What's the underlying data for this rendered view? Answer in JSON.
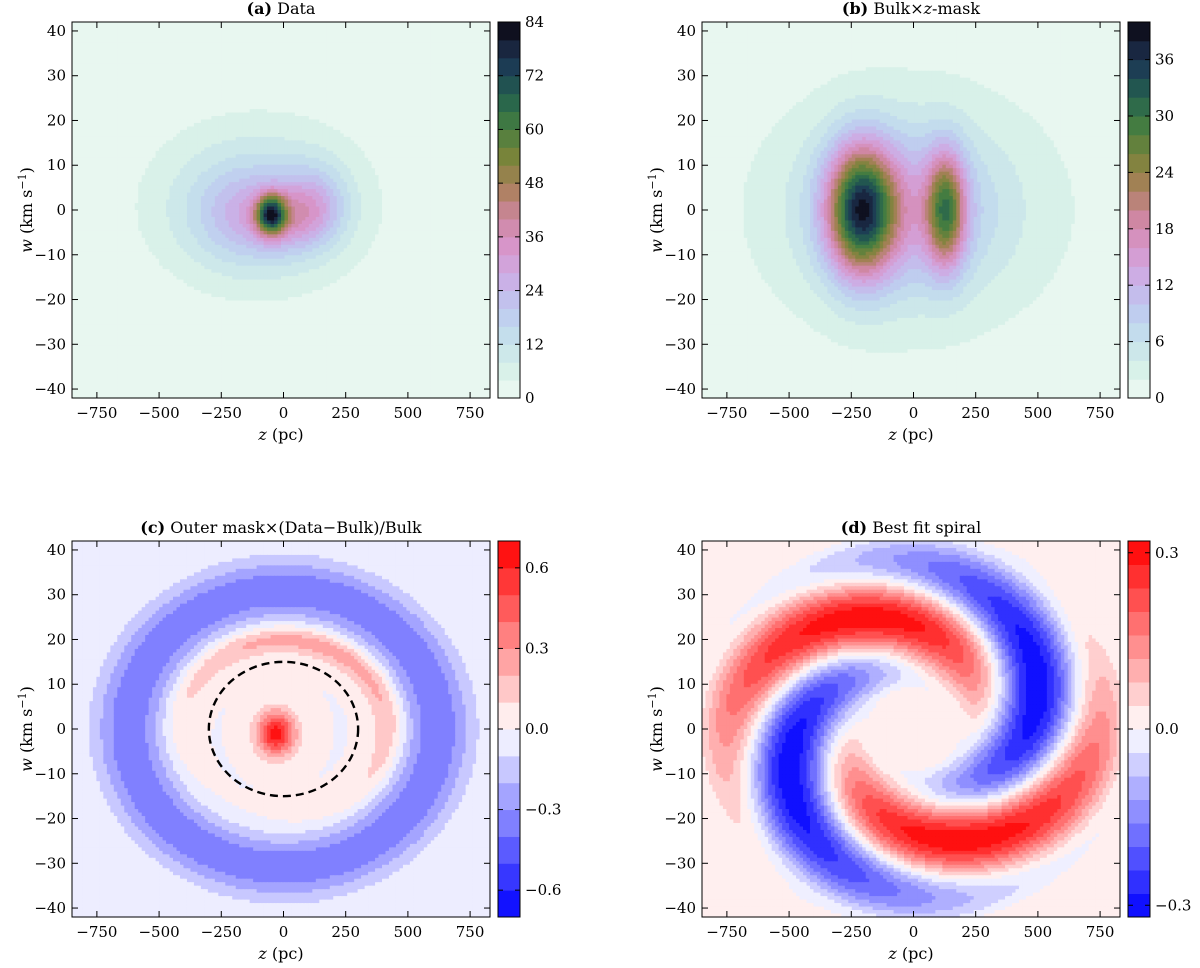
{
  "chart_data": [
    {
      "id": "a",
      "type": "heatmap",
      "title_tag": "(a)",
      "title_text": " Data",
      "xlabel_var": "z",
      "xlabel_unit": " (pc)",
      "ylabel_var": "w",
      "ylabel_unit": " (km s",
      "ylabel_exp": "−1",
      "ylabel_close": ")",
      "xlim": [
        -850,
        830
      ],
      "ylim": [
        -42,
        42
      ],
      "xticks": [
        -750,
        -500,
        -250,
        0,
        250,
        500,
        750
      ],
      "xticklabels": [
        "−750",
        "−500",
        "−250",
        "0",
        "250",
        "500",
        "750"
      ],
      "yticks": [
        -40,
        -30,
        -20,
        -10,
        0,
        10,
        20,
        30,
        40
      ],
      "yticklabels": [
        "−40",
        "−30",
        "−20",
        "−10",
        "0",
        "10",
        "20",
        "30",
        "40"
      ],
      "colorbar": {
        "min": 0,
        "max": 84,
        "levels": 21,
        "ticks": [
          0,
          12,
          24,
          36,
          48,
          60,
          72,
          84
        ],
        "ticklabels": [
          "0",
          "12",
          "24",
          "36",
          "48",
          "60",
          "72",
          "84"
        ],
        "cmap": "cubehelix_r"
      },
      "features": [
        {
          "kind": "blob",
          "z": -50,
          "w": -1,
          "sz": 40,
          "sw": 3,
          "amp": 50
        },
        {
          "kind": "blob",
          "z": 40,
          "w": -2,
          "sz": 110,
          "sw": 5,
          "amp": 14
        },
        {
          "kind": "blob",
          "z": -150,
          "w": -1,
          "sz": 140,
          "sw": 7,
          "amp": 12
        },
        {
          "kind": "blob",
          "z": 130,
          "w": 2,
          "sz": 90,
          "sw": 6,
          "amp": 12
        },
        {
          "kind": "blob",
          "z": -100,
          "w": 1,
          "sz": 300,
          "sw": 13,
          "amp": 15
        }
      ]
    },
    {
      "id": "b",
      "type": "heatmap",
      "title_tag": "(b)",
      "title_text": " Bulk×",
      "title_var": "z",
      "title_end": "-mask",
      "xlabel_var": "z",
      "xlabel_unit": " (pc)",
      "ylabel_var": "w",
      "ylabel_unit": " (km s",
      "ylabel_exp": "−1",
      "ylabel_close": ")",
      "xlim": [
        -850,
        830
      ],
      "ylim": [
        -42,
        42
      ],
      "xticks": [
        -750,
        -500,
        -250,
        0,
        250,
        500,
        750
      ],
      "xticklabels": [
        "−750",
        "−500",
        "−250",
        "0",
        "250",
        "500",
        "750"
      ],
      "yticks": [
        -40,
        -30,
        -20,
        -10,
        0,
        10,
        20,
        30,
        40
      ],
      "yticklabels": [
        "−40",
        "−30",
        "−20",
        "−10",
        "0",
        "10",
        "20",
        "30",
        "40"
      ],
      "colorbar": {
        "min": 0,
        "max": 40,
        "levels": 20,
        "ticks": [
          0,
          6,
          12,
          18,
          24,
          30,
          36
        ],
        "ticklabels": [
          "0",
          "6",
          "12",
          "18",
          "24",
          "30",
          "36"
        ],
        "cmap": "cubehelix_r"
      },
      "features": [
        {
          "kind": "blob",
          "z": -210,
          "w": 0,
          "sz": 95,
          "sw": 10,
          "amp": 28
        },
        {
          "kind": "blob",
          "z": 130,
          "w": 0,
          "sz": 55,
          "sw": 9,
          "amp": 20
        },
        {
          "kind": "blob",
          "z": -40,
          "w": 0,
          "sz": 260,
          "sw": 13,
          "amp": 10
        },
        {
          "kind": "blob",
          "z": 0,
          "w": 0,
          "sz": 600,
          "sw": 26,
          "amp": 3
        }
      ]
    },
    {
      "id": "c",
      "type": "heatmap",
      "title_tag": "(c)",
      "title_text": " Outer mask×(Data−Bulk)/Bulk",
      "xlabel_var": "z",
      "xlabel_unit": " (pc)",
      "ylabel_var": "w",
      "ylabel_unit": " (km s",
      "ylabel_exp": "−1",
      "ylabel_close": ")",
      "xlim": [
        -850,
        830
      ],
      "ylim": [
        -42,
        42
      ],
      "xticks": [
        -750,
        -500,
        -250,
        0,
        250,
        500,
        750
      ],
      "xticklabels": [
        "−750",
        "−500",
        "−250",
        "0",
        "250",
        "500",
        "750"
      ],
      "yticks": [
        -40,
        -30,
        -20,
        -10,
        0,
        10,
        20,
        30,
        40
      ],
      "yticklabels": [
        "−40",
        "−30",
        "−20",
        "−10",
        "0",
        "10",
        "20",
        "30",
        "40"
      ],
      "colorbar": {
        "min": -0.7,
        "max": 0.7,
        "levels": 14,
        "ticks": [
          -0.6,
          -0.3,
          0.0,
          0.3,
          0.6
        ],
        "ticklabels": [
          "−0.6",
          "−0.3",
          "0.0",
          "0.3",
          "0.6"
        ],
        "cmap": "bwr"
      },
      "dashed_ellipse": {
        "z0": 0,
        "w0": 0,
        "rz": 300,
        "rw": 15
      },
      "features": [
        {
          "kind": "blob",
          "z": -30,
          "w": -1,
          "sz": 55,
          "sw": 3.5,
          "amp": 0.65
        },
        {
          "kind": "ring",
          "rz": 620,
          "rw": 31,
          "width": 0.16,
          "amp": -0.38
        },
        {
          "kind": "ring",
          "rz": 420,
          "rw": 20,
          "width": 0.11,
          "amp": 0.28,
          "phase": 1.1
        }
      ]
    },
    {
      "id": "d",
      "type": "heatmap",
      "title_tag": "(d)",
      "title_text": " Best fit spiral",
      "xlabel_var": "z",
      "xlabel_unit": " (pc)",
      "ylabel_var": "w",
      "ylabel_unit": " (km s",
      "ylabel_exp": "−1",
      "ylabel_close": ")",
      "xlim": [
        -850,
        830
      ],
      "ylim": [
        -42,
        42
      ],
      "xticks": [
        -750,
        -500,
        -250,
        0,
        250,
        500,
        750
      ],
      "xticklabels": [
        "−750",
        "−500",
        "−250",
        "0",
        "250",
        "500",
        "750"
      ],
      "yticks": [
        -40,
        -30,
        -20,
        -10,
        0,
        10,
        20,
        30,
        40
      ],
      "yticklabels": [
        "−40",
        "−30",
        "−20",
        "−10",
        "0",
        "10",
        "20",
        "30",
        "40"
      ],
      "colorbar": {
        "min": -0.32,
        "max": 0.32,
        "levels": 16,
        "ticks": [
          -0.3,
          0.0,
          0.3
        ],
        "ticklabels": [
          "−0.3",
          "0.0",
          "0.3"
        ],
        "cmap": "bwr"
      },
      "features": [
        {
          "kind": "spiral",
          "amp": 0.31,
          "rin": 0.3,
          "rout": 1.42,
          "wind": 5.2
        }
      ]
    }
  ]
}
